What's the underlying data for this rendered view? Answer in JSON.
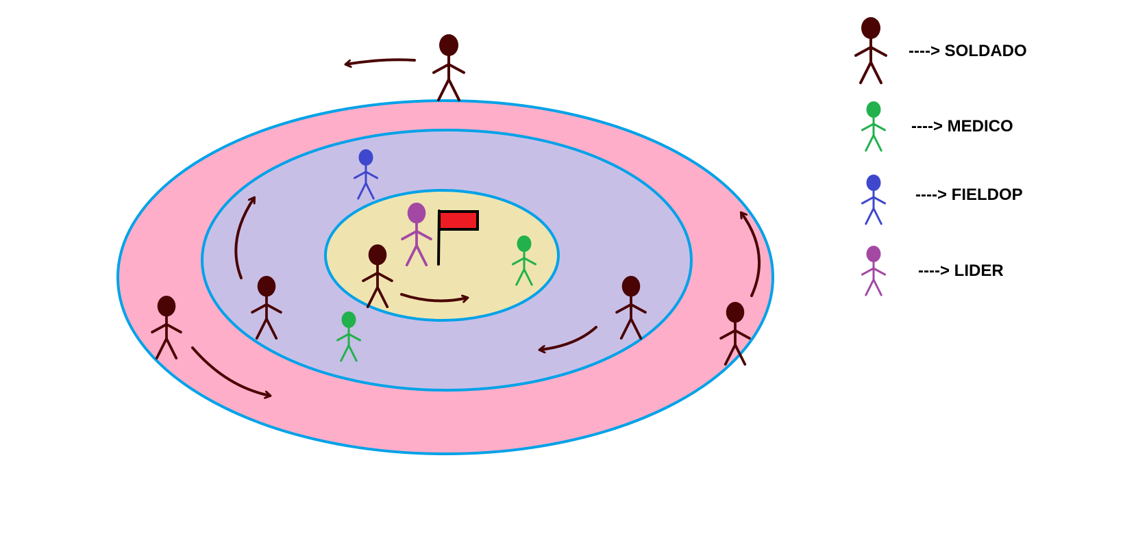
{
  "colors": {
    "soldado": "#4a0404",
    "medico": "#22b14c",
    "fieldop": "#3f48cc",
    "lider": "#a349a4",
    "outer_ring": "#ffaec9",
    "middle_ring": "#c8bfe7",
    "inner_zone": "#efe4b0",
    "ring_border": "#00a2e8",
    "flag": "#ed1c24",
    "arrow": "#4a0404"
  },
  "legend": [
    {
      "role": "soldado",
      "label": "----> SOLDADO"
    },
    {
      "role": "medico",
      "label": "----> MEDICO"
    },
    {
      "role": "fieldop",
      "label": "----> FIELDOP"
    },
    {
      "role": "lider",
      "label": "----> LIDER"
    }
  ],
  "figures": [
    {
      "role": "soldado",
      "zone": "outside"
    },
    {
      "role": "fieldop",
      "zone": "middle-ring"
    },
    {
      "role": "lider",
      "zone": "center"
    },
    {
      "role": "soldado",
      "zone": "center"
    },
    {
      "role": "medico",
      "zone": "center"
    },
    {
      "role": "soldado",
      "zone": "middle-ring"
    },
    {
      "role": "medico",
      "zone": "middle-ring"
    },
    {
      "role": "soldado",
      "zone": "middle-ring"
    },
    {
      "role": "soldado",
      "zone": "outer-ring"
    },
    {
      "role": "soldado",
      "zone": "outer-ring"
    }
  ],
  "flag": {
    "zone": "center"
  }
}
